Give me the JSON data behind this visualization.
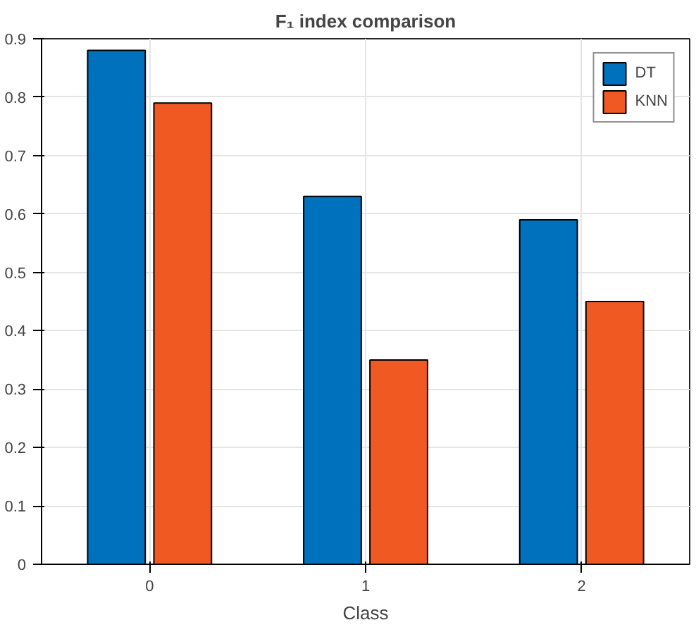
{
  "chart_data": {
    "type": "bar",
    "title": "F₁ index comparison",
    "xlabel": "Class",
    "categories": [
      "0",
      "1",
      "2"
    ],
    "series": [
      {
        "name": "DT",
        "color": "#0072bd",
        "values": [
          0.88,
          0.63,
          0.59
        ]
      },
      {
        "name": "KNN",
        "color": "#f05a22",
        "values": [
          0.79,
          0.35,
          0.45
        ]
      }
    ],
    "ylim": [
      0,
      0.9
    ],
    "yticks": [
      0,
      0.1,
      0.2,
      0.3,
      0.4,
      0.5,
      0.6,
      0.7,
      0.8,
      0.9
    ],
    "grid": true,
    "legend": "top right"
  }
}
